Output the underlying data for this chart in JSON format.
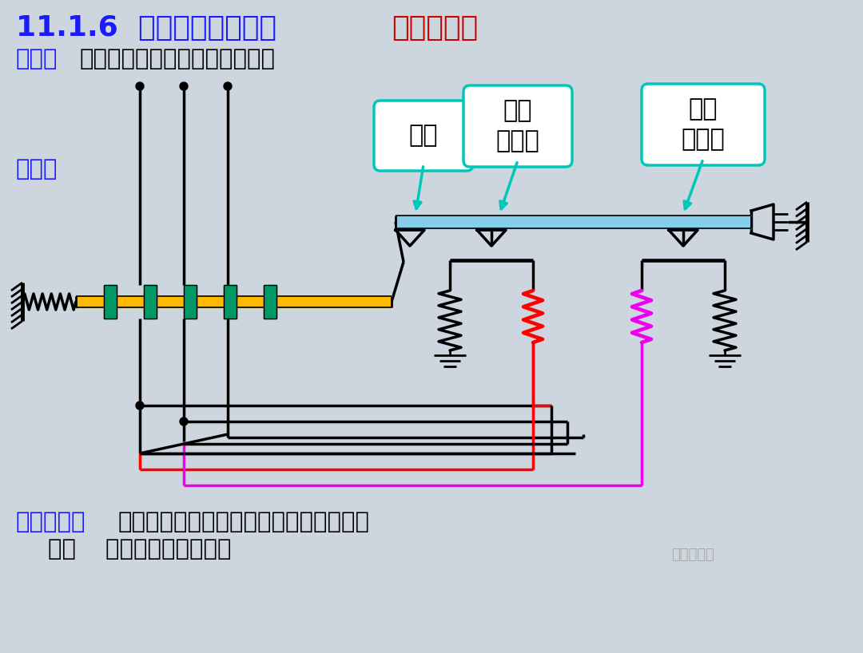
{
  "bg_color": "#cdd5df",
  "title_blue": "11.1.6  自动空气断路器（",
  "title_red": "自动开关）",
  "line2_label": "作用：",
  "line2_text": "可实现短路、过载、失压保护。",
  "struct_label": "结构：",
  "label_suo": "锁钉",
  "label_guo": "过流\n脱扣器",
  "label_qian": "欠压\n脱扣器",
  "work_label": "工作原理：",
  "work_text1": "过流时，过流脱扣器将脱鑉顶开，断开电",
  "work_text2": "源；    过流脱扣即热脱扣。",
  "watermark": "电气设计圈",
  "cyan": "#00c8b8",
  "blue_bar": "#87CEEB",
  "yellow": "#FFB800",
  "red": "#FF0000",
  "magenta": "#EE00EE",
  "teal": "#009966",
  "white": "#ffffff"
}
